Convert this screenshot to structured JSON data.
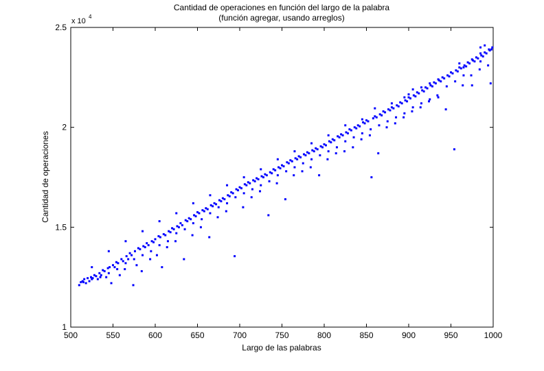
{
  "chart_data": {
    "type": "scatter",
    "title": "Cantidad de operaciones en función del largo de la palabra",
    "subtitle": "(función agregar, usando arreglos)",
    "xlabel": "Largo de las palabras",
    "ylabel": "Cantidad de operaciones",
    "xlim": [
      500,
      1000
    ],
    "ylim": [
      1,
      2.5
    ],
    "y_exponent_base": "x 10",
    "y_exponent_power": "4",
    "x_ticks": [
      500,
      550,
      600,
      650,
      700,
      750,
      800,
      850,
      900,
      950,
      1000
    ],
    "x_tick_labels": [
      "500",
      "550",
      "600",
      "650",
      "700",
      "750",
      "800",
      "850",
      "900",
      "950",
      "1000"
    ],
    "y_ticks": [
      1,
      1.5,
      2,
      2.5
    ],
    "y_tick_labels": [
      "1",
      "1.5",
      "2",
      "2.5"
    ],
    "grid": false,
    "legend": "none",
    "marker": "dot",
    "color": "#0000ff",
    "points": [
      [
        510,
        1.21
      ],
      [
        512,
        1.225
      ],
      [
        514,
        1.23
      ],
      [
        516,
        1.24
      ],
      [
        518,
        1.22
      ],
      [
        520,
        1.245
      ],
      [
        522,
        1.23
      ],
      [
        524,
        1.25
      ],
      [
        526,
        1.245
      ],
      [
        528,
        1.26
      ],
      [
        530,
        1.255
      ],
      [
        532,
        1.24
      ],
      [
        534,
        1.27
      ],
      [
        536,
        1.26
      ],
      [
        538,
        1.285
      ],
      [
        540,
        1.28
      ],
      [
        542,
        1.25
      ],
      [
        544,
        1.295
      ],
      [
        546,
        1.3
      ],
      [
        548,
        1.22
      ],
      [
        550,
        1.31
      ],
      [
        552,
        1.3
      ],
      [
        554,
        1.325
      ],
      [
        556,
        1.32
      ],
      [
        558,
        1.26
      ],
      [
        560,
        1.34
      ],
      [
        562,
        1.33
      ],
      [
        564,
        1.29
      ],
      [
        566,
        1.355
      ],
      [
        568,
        1.34
      ],
      [
        570,
        1.37
      ],
      [
        572,
        1.36
      ],
      [
        574,
        1.21
      ],
      [
        576,
        1.38
      ],
      [
        578,
        1.31
      ],
      [
        580,
        1.395
      ],
      [
        582,
        1.39
      ],
      [
        584,
        1.28
      ],
      [
        586,
        1.405
      ],
      [
        588,
        1.4
      ],
      [
        590,
        1.42
      ],
      [
        592,
        1.41
      ],
      [
        594,
        1.34
      ],
      [
        596,
        1.43
      ],
      [
        598,
        1.425
      ],
      [
        600,
        1.44
      ],
      [
        602,
        1.36
      ],
      [
        604,
        1.455
      ],
      [
        606,
        1.45
      ],
      [
        608,
        1.3
      ],
      [
        610,
        1.465
      ],
      [
        612,
        1.46
      ],
      [
        614,
        1.4
      ],
      [
        616,
        1.48
      ],
      [
        618,
        1.475
      ],
      [
        620,
        1.495
      ],
      [
        622,
        1.49
      ],
      [
        624,
        1.43
      ],
      [
        626,
        1.505
      ],
      [
        628,
        1.5
      ],
      [
        630,
        1.52
      ],
      [
        632,
        1.51
      ],
      [
        634,
        1.34
      ],
      [
        636,
        1.535
      ],
      [
        638,
        1.53
      ],
      [
        640,
        1.545
      ],
      [
        642,
        1.54
      ],
      [
        644,
        1.46
      ],
      [
        646,
        1.56
      ],
      [
        648,
        1.555
      ],
      [
        650,
        1.575
      ],
      [
        652,
        1.57
      ],
      [
        654,
        1.5
      ],
      [
        656,
        1.585
      ],
      [
        658,
        1.58
      ],
      [
        660,
        1.595
      ],
      [
        662,
        1.59
      ],
      [
        664,
        1.45
      ],
      [
        666,
        1.61
      ],
      [
        668,
        1.605
      ],
      [
        670,
        1.62
      ],
      [
        672,
        1.615
      ],
      [
        674,
        1.55
      ],
      [
        676,
        1.635
      ],
      [
        678,
        1.63
      ],
      [
        680,
        1.645
      ],
      [
        682,
        1.64
      ],
      [
        684,
        1.58
      ],
      [
        686,
        1.66
      ],
      [
        688,
        1.655
      ],
      [
        690,
        1.675
      ],
      [
        692,
        1.67
      ],
      [
        694,
        1.355
      ],
      [
        696,
        1.69
      ],
      [
        698,
        1.685
      ],
      [
        700,
        1.7
      ],
      [
        702,
        1.695
      ],
      [
        704,
        1.6
      ],
      [
        706,
        1.715
      ],
      [
        708,
        1.71
      ],
      [
        710,
        1.725
      ],
      [
        712,
        1.72
      ],
      [
        714,
        1.65
      ],
      [
        716,
        1.735
      ],
      [
        718,
        1.73
      ],
      [
        720,
        1.745
      ],
      [
        722,
        1.74
      ],
      [
        724,
        1.68
      ],
      [
        726,
        1.755
      ],
      [
        728,
        1.75
      ],
      [
        730,
        1.765
      ],
      [
        732,
        1.76
      ],
      [
        734,
        1.56
      ],
      [
        736,
        1.775
      ],
      [
        738,
        1.77
      ],
      [
        740,
        1.79
      ],
      [
        742,
        1.785
      ],
      [
        744,
        1.72
      ],
      [
        746,
        1.8
      ],
      [
        748,
        1.795
      ],
      [
        750,
        1.81
      ],
      [
        752,
        1.805
      ],
      [
        754,
        1.64
      ],
      [
        756,
        1.825
      ],
      [
        758,
        1.82
      ],
      [
        760,
        1.835
      ],
      [
        762,
        1.83
      ],
      [
        764,
        1.76
      ],
      [
        766,
        1.845
      ],
      [
        768,
        1.84
      ],
      [
        770,
        1.855
      ],
      [
        772,
        1.85
      ],
      [
        774,
        1.78
      ],
      [
        776,
        1.865
      ],
      [
        778,
        1.86
      ],
      [
        780,
        1.875
      ],
      [
        782,
        1.87
      ],
      [
        784,
        1.8
      ],
      [
        786,
        1.885
      ],
      [
        788,
        1.88
      ],
      [
        790,
        1.895
      ],
      [
        792,
        1.89
      ],
      [
        794,
        1.76
      ],
      [
        796,
        1.905
      ],
      [
        798,
        1.9
      ],
      [
        800,
        1.915
      ],
      [
        802,
        1.91
      ],
      [
        804,
        1.84
      ],
      [
        806,
        1.93
      ],
      [
        808,
        1.925
      ],
      [
        810,
        1.94
      ],
      [
        812,
        1.935
      ],
      [
        814,
        1.87
      ],
      [
        816,
        1.955
      ],
      [
        818,
        1.95
      ],
      [
        820,
        1.965
      ],
      [
        822,
        1.96
      ],
      [
        824,
        1.88
      ],
      [
        826,
        1.975
      ],
      [
        828,
        1.97
      ],
      [
        830,
        1.99
      ],
      [
        832,
        1.985
      ],
      [
        834,
        1.9
      ],
      [
        836,
        2.0
      ],
      [
        838,
        1.995
      ],
      [
        840,
        2.01
      ],
      [
        842,
        2.005
      ],
      [
        844,
        1.94
      ],
      [
        846,
        2.025
      ],
      [
        848,
        2.02
      ],
      [
        850,
        2.035
      ],
      [
        852,
        2.03
      ],
      [
        854,
        1.96
      ],
      [
        856,
        1.75
      ],
      [
        858,
        2.045
      ],
      [
        860,
        2.055
      ],
      [
        862,
        2.05
      ],
      [
        864,
        1.87
      ],
      [
        866,
        2.065
      ],
      [
        868,
        2.06
      ],
      [
        870,
        2.08
      ],
      [
        872,
        2.075
      ],
      [
        874,
        2.0
      ],
      [
        876,
        2.09
      ],
      [
        878,
        2.085
      ],
      [
        880,
        2.1
      ],
      [
        882,
        2.095
      ],
      [
        884,
        2.02
      ],
      [
        886,
        2.11
      ],
      [
        888,
        2.105
      ],
      [
        890,
        2.125
      ],
      [
        892,
        2.12
      ],
      [
        894,
        2.05
      ],
      [
        896,
        2.135
      ],
      [
        898,
        2.13
      ],
      [
        900,
        2.15
      ],
      [
        902,
        2.145
      ],
      [
        904,
        2.08
      ],
      [
        906,
        2.16
      ],
      [
        908,
        2.155
      ],
      [
        910,
        2.175
      ],
      [
        912,
        2.17
      ],
      [
        914,
        2.1
      ],
      [
        916,
        2.185
      ],
      [
        918,
        2.18
      ],
      [
        920,
        2.2
      ],
      [
        922,
        2.195
      ],
      [
        924,
        2.13
      ],
      [
        926,
        2.21
      ],
      [
        928,
        2.205
      ],
      [
        930,
        2.225
      ],
      [
        932,
        2.22
      ],
      [
        934,
        2.16
      ],
      [
        936,
        2.235
      ],
      [
        938,
        2.23
      ],
      [
        940,
        2.25
      ],
      [
        942,
        2.245
      ],
      [
        944,
        2.09
      ],
      [
        946,
        2.26
      ],
      [
        948,
        2.255
      ],
      [
        950,
        2.275
      ],
      [
        952,
        2.27
      ],
      [
        954,
        1.89
      ],
      [
        956,
        2.285
      ],
      [
        958,
        2.28
      ],
      [
        960,
        2.3
      ],
      [
        962,
        2.295
      ],
      [
        964,
        2.21
      ],
      [
        966,
        2.31
      ],
      [
        968,
        2.305
      ],
      [
        970,
        2.325
      ],
      [
        972,
        2.32
      ],
      [
        974,
        2.26
      ],
      [
        976,
        2.335
      ],
      [
        978,
        2.33
      ],
      [
        980,
        2.35
      ],
      [
        982,
        2.345
      ],
      [
        984,
        2.29
      ],
      [
        986,
        2.36
      ],
      [
        988,
        2.355
      ],
      [
        990,
        2.375
      ],
      [
        992,
        2.37
      ],
      [
        994,
        2.31
      ],
      [
        996,
        2.385
      ],
      [
        998,
        2.39
      ],
      [
        999,
        2.4
      ],
      [
        997,
        2.22
      ],
      [
        975,
        2.21
      ],
      [
        945,
        2.205
      ],
      [
        935,
        2.15
      ],
      [
        515,
        1.225
      ],
      [
        525,
        1.24
      ],
      [
        535,
        1.25
      ],
      [
        545,
        1.27
      ],
      [
        555,
        1.29
      ],
      [
        565,
        1.32
      ],
      [
        575,
        1.34
      ],
      [
        585,
        1.36
      ],
      [
        595,
        1.38
      ],
      [
        605,
        1.41
      ],
      [
        615,
        1.43
      ],
      [
        625,
        1.47
      ],
      [
        635,
        1.49
      ],
      [
        645,
        1.52
      ],
      [
        655,
        1.54
      ],
      [
        665,
        1.57
      ],
      [
        675,
        1.6
      ],
      [
        685,
        1.62
      ],
      [
        695,
        1.65
      ],
      [
        705,
        1.67
      ],
      [
        715,
        1.69
      ],
      [
        725,
        1.71
      ],
      [
        735,
        1.73
      ],
      [
        745,
        1.76
      ],
      [
        755,
        1.78
      ],
      [
        765,
        1.8
      ],
      [
        775,
        1.82
      ],
      [
        785,
        1.84
      ],
      [
        795,
        1.86
      ],
      [
        805,
        1.88
      ],
      [
        815,
        1.9
      ],
      [
        825,
        1.93
      ],
      [
        835,
        1.95
      ],
      [
        845,
        1.97
      ],
      [
        855,
        1.99
      ],
      [
        865,
        2.01
      ],
      [
        875,
        2.03
      ],
      [
        885,
        2.05
      ],
      [
        895,
        2.07
      ],
      [
        905,
        2.1
      ],
      [
        915,
        2.12
      ],
      [
        925,
        2.14
      ],
      [
        965,
        2.26
      ],
      [
        985,
        2.33
      ],
      [
        955,
        2.23
      ],
      [
        895,
        2.15
      ],
      [
        905,
        2.19
      ],
      [
        915,
        2.2
      ],
      [
        925,
        2.22
      ],
      [
        935,
        2.24
      ],
      [
        965,
        2.3
      ],
      [
        975,
        2.34
      ],
      [
        985,
        2.37
      ],
      [
        995,
        2.39
      ],
      [
        985,
        2.4
      ],
      [
        845,
        2.04
      ],
      [
        825,
        2.01
      ],
      [
        805,
        1.96
      ],
      [
        785,
        1.92
      ],
      [
        765,
        1.88
      ],
      [
        745,
        1.84
      ],
      [
        725,
        1.79
      ],
      [
        705,
        1.75
      ],
      [
        685,
        1.71
      ],
      [
        665,
        1.66
      ],
      [
        645,
        1.62
      ],
      [
        625,
        1.57
      ],
      [
        605,
        1.53
      ],
      [
        585,
        1.48
      ],
      [
        565,
        1.43
      ],
      [
        545,
        1.38
      ],
      [
        525,
        1.3
      ],
      [
        860,
        2.095
      ],
      [
        880,
        2.12
      ],
      [
        900,
        2.165
      ],
      [
        960,
        2.32
      ],
      [
        990,
        2.41
      ]
    ]
  }
}
